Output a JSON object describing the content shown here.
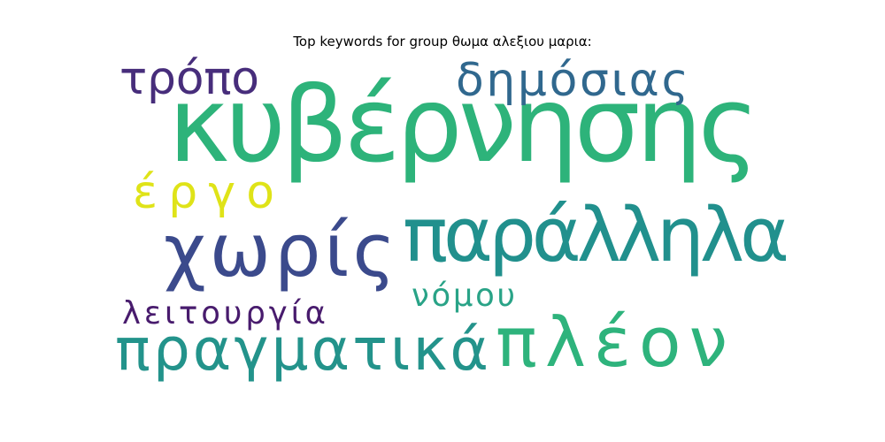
{
  "chart_data": {
    "type": "wordcloud",
    "title": "Top keywords for group θωμα αλεξιου μαρια:",
    "words": [
      {
        "text": "κυβέρνησης",
        "weight": 1.0,
        "color": "#2db37a"
      },
      {
        "text": "παράλληλα",
        "weight": 0.72,
        "color": "#21908d"
      },
      {
        "text": "χωρίς",
        "weight": 0.7,
        "color": "#3b4a8c"
      },
      {
        "text": "πλέον",
        "weight": 0.66,
        "color": "#2eb37c"
      },
      {
        "text": "πραγματικά",
        "weight": 0.56,
        "color": "#23938b"
      },
      {
        "text": "δημόσιας",
        "weight": 0.44,
        "color": "#30688e"
      },
      {
        "text": "τρόπο",
        "weight": 0.44,
        "color": "#472d7b"
      },
      {
        "text": "έργο",
        "weight": 0.44,
        "color": "#dfe318"
      },
      {
        "text": "λειτουργία",
        "weight": 0.3,
        "color": "#481b6d"
      },
      {
        "text": "νόμου",
        "weight": 0.3,
        "color": "#29a387"
      }
    ]
  }
}
